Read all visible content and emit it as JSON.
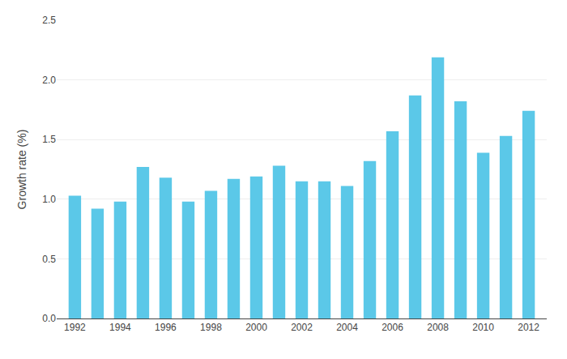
{
  "chart_data": {
    "type": "bar",
    "x": [
      1992,
      1993,
      1994,
      1995,
      1996,
      1997,
      1998,
      1999,
      2000,
      2001,
      2002,
      2003,
      2004,
      2005,
      2006,
      2007,
      2008,
      2009,
      2010,
      2011,
      2012
    ],
    "values": [
      1.03,
      0.92,
      0.98,
      1.27,
      1.18,
      0.98,
      1.07,
      1.17,
      1.19,
      1.28,
      1.15,
      1.15,
      1.11,
      1.32,
      1.57,
      1.87,
      2.19,
      1.82,
      1.39,
      1.53,
      1.74
    ],
    "color": "#5bc8e8",
    "ylabel": "Growth rate (%)",
    "xlim": [
      1991.2,
      2012.8
    ],
    "xticks": [
      1992,
      1994,
      1996,
      1998,
      2000,
      2002,
      2004,
      2006,
      2008,
      2010,
      2012
    ],
    "ylim": [
      0.0,
      2.5
    ],
    "yticks": [
      {
        "value": 0.0,
        "label": "0.0"
      },
      0.5,
      {
        "value": 1.0,
        "label": "1.0"
      },
      1.5,
      {
        "value": 2.0,
        "label": "2.0"
      },
      2.5
    ],
    "grid": true
  }
}
